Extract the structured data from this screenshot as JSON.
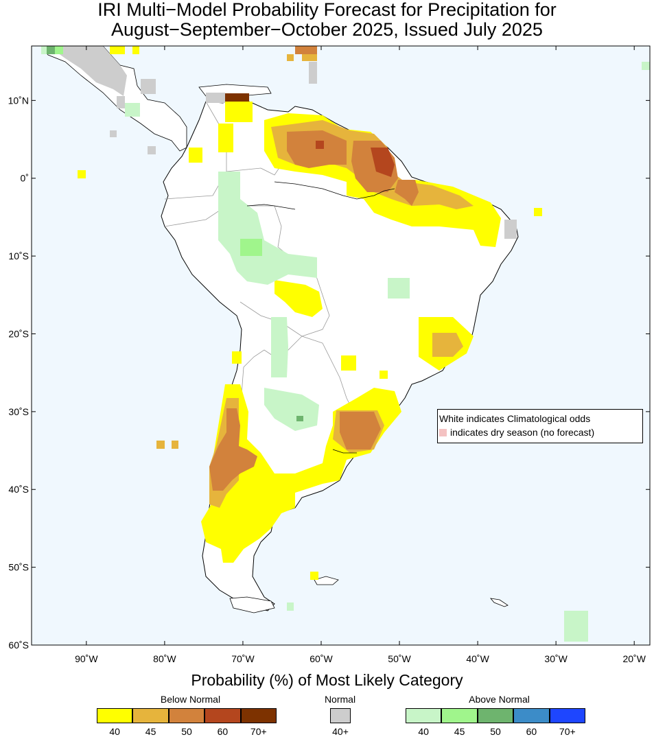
{
  "title": {
    "line1": "IRI Multi−Model Probability Forecast for Precipitation for",
    "line2": "August−September−October 2025, Issued July 2025"
  },
  "map": {
    "lat_labels": [
      "10˚N",
      "0˚",
      "10˚S",
      "20˚S",
      "30˚S",
      "40˚S",
      "50˚S",
      "60˚S"
    ],
    "lon_labels": [
      "90˚W",
      "80˚W",
      "70˚W",
      "60˚W",
      "50˚W",
      "40˚W",
      "30˚W",
      "20˚W"
    ],
    "lat_range": [
      -60,
      17
    ],
    "lon_range": [
      -97,
      -18
    ],
    "ocean_color": "#f0f8fe",
    "land_color": "#ffffff"
  },
  "note": {
    "line1": "White indicates Climatological odds",
    "line2": "indicates dry season (no forecast)"
  },
  "legend": {
    "title": "Probability (%) of Most Likely Category",
    "below": {
      "title": "Below Normal",
      "labels": [
        "40",
        "45",
        "50",
        "60",
        "70+"
      ],
      "colors": [
        "#ffff00",
        "#e6b43c",
        "#d2823c",
        "#b4461e",
        "#7d3200"
      ]
    },
    "normal": {
      "title": "Normal",
      "labels": [
        "40+"
      ],
      "colors": [
        "#cdcdcd"
      ]
    },
    "above": {
      "title": "Above Normal",
      "labels": [
        "40",
        "45",
        "50",
        "60",
        "70+"
      ],
      "colors": [
        "#c8f5c8",
        "#a0f58c",
        "#6eb46e",
        "#3c8cc8",
        "#1e46ff"
      ]
    }
  }
}
